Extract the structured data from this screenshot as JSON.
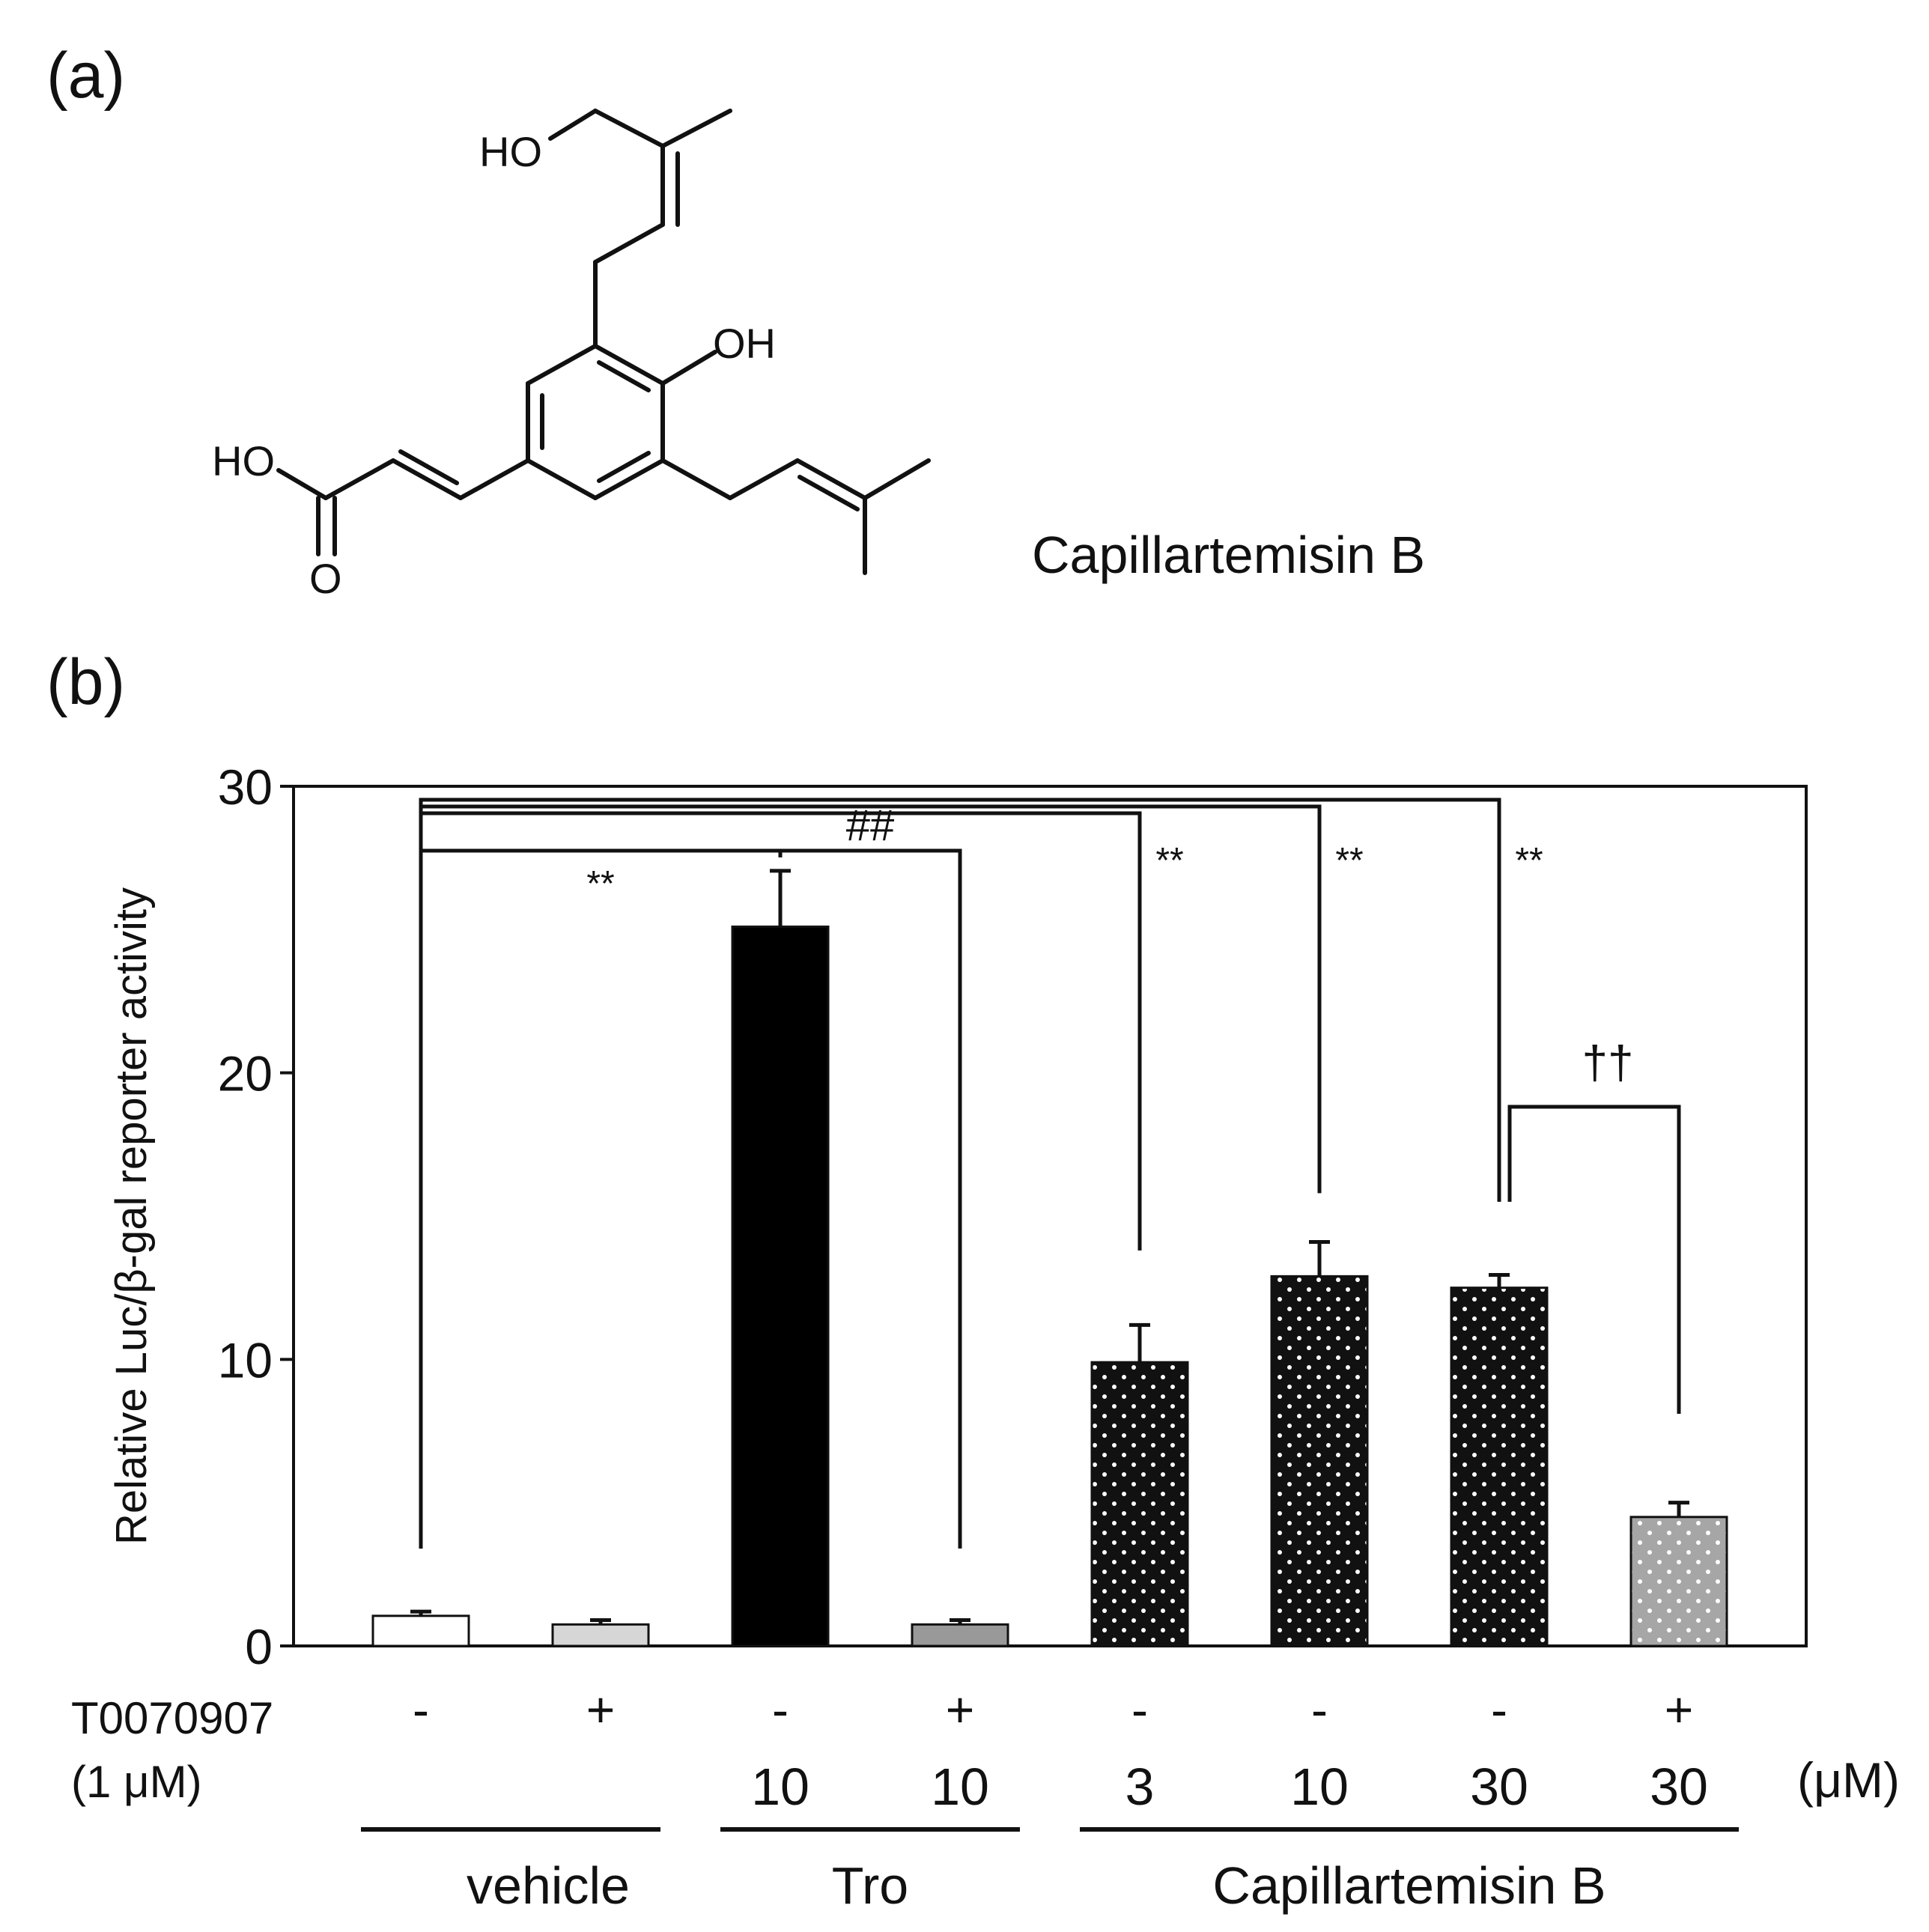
{
  "panel_a": {
    "label": "(a)",
    "compound_name": "Capillartemisin B",
    "atom_labels": {
      "ho_top": "HO",
      "oh_ring": "OH",
      "ho_acid": "HO",
      "o_carbonyl": "O"
    }
  },
  "panel_b": {
    "label": "(b)",
    "treatment_row_label_line1": "T0070907",
    "treatment_row_label_line2": "(1 μM)",
    "concentration_unit": "(μM)",
    "significance": [
      {
        "from": 0,
        "to": 2,
        "label": "**"
      },
      {
        "from": 2,
        "to": 3,
        "label": "##"
      },
      {
        "from": 0,
        "to": 4,
        "label": "**"
      },
      {
        "from": 0,
        "to": 5,
        "label": "**"
      },
      {
        "from": 0,
        "to": 6,
        "label": "**"
      },
      {
        "from": 6,
        "to": 7,
        "label": "††"
      }
    ],
    "groups": [
      {
        "name": "vehicle",
        "bars": [
          0,
          1
        ]
      },
      {
        "name": "Tro",
        "bars": [
          2,
          3
        ]
      },
      {
        "name": "Capillartemisin B",
        "bars": [
          4,
          5,
          6,
          7
        ]
      }
    ]
  },
  "chart_data": {
    "type": "bar",
    "ylabel": "Relative Luc/β-gal reporter activity",
    "ylim": [
      0,
      30
    ],
    "yticks": [
      "0",
      "10",
      "20",
      "30"
    ],
    "grid": false,
    "categories": [
      "-",
      "+",
      "-",
      "+",
      "-",
      "-",
      "-",
      "+"
    ],
    "concentrations": [
      "",
      "",
      "10",
      "10",
      "3",
      "10",
      "30",
      "30"
    ],
    "values": [
      1.05,
      0.75,
      25.1,
      0.75,
      9.9,
      12.9,
      12.5,
      4.5
    ],
    "errors": [
      0.15,
      0.15,
      1.95,
      0.15,
      1.3,
      1.2,
      0.45,
      0.5
    ],
    "colors": [
      "#ffffff",
      "#d6d6d6",
      "#000000",
      "#999999",
      "#0d0d0d",
      "#0d0d0d",
      "#0d0d0d",
      "#a6a6a6"
    ],
    "patterns": [
      "none",
      "none",
      "none",
      "none",
      "dots",
      "dots",
      "dots",
      "dots-light"
    ]
  }
}
